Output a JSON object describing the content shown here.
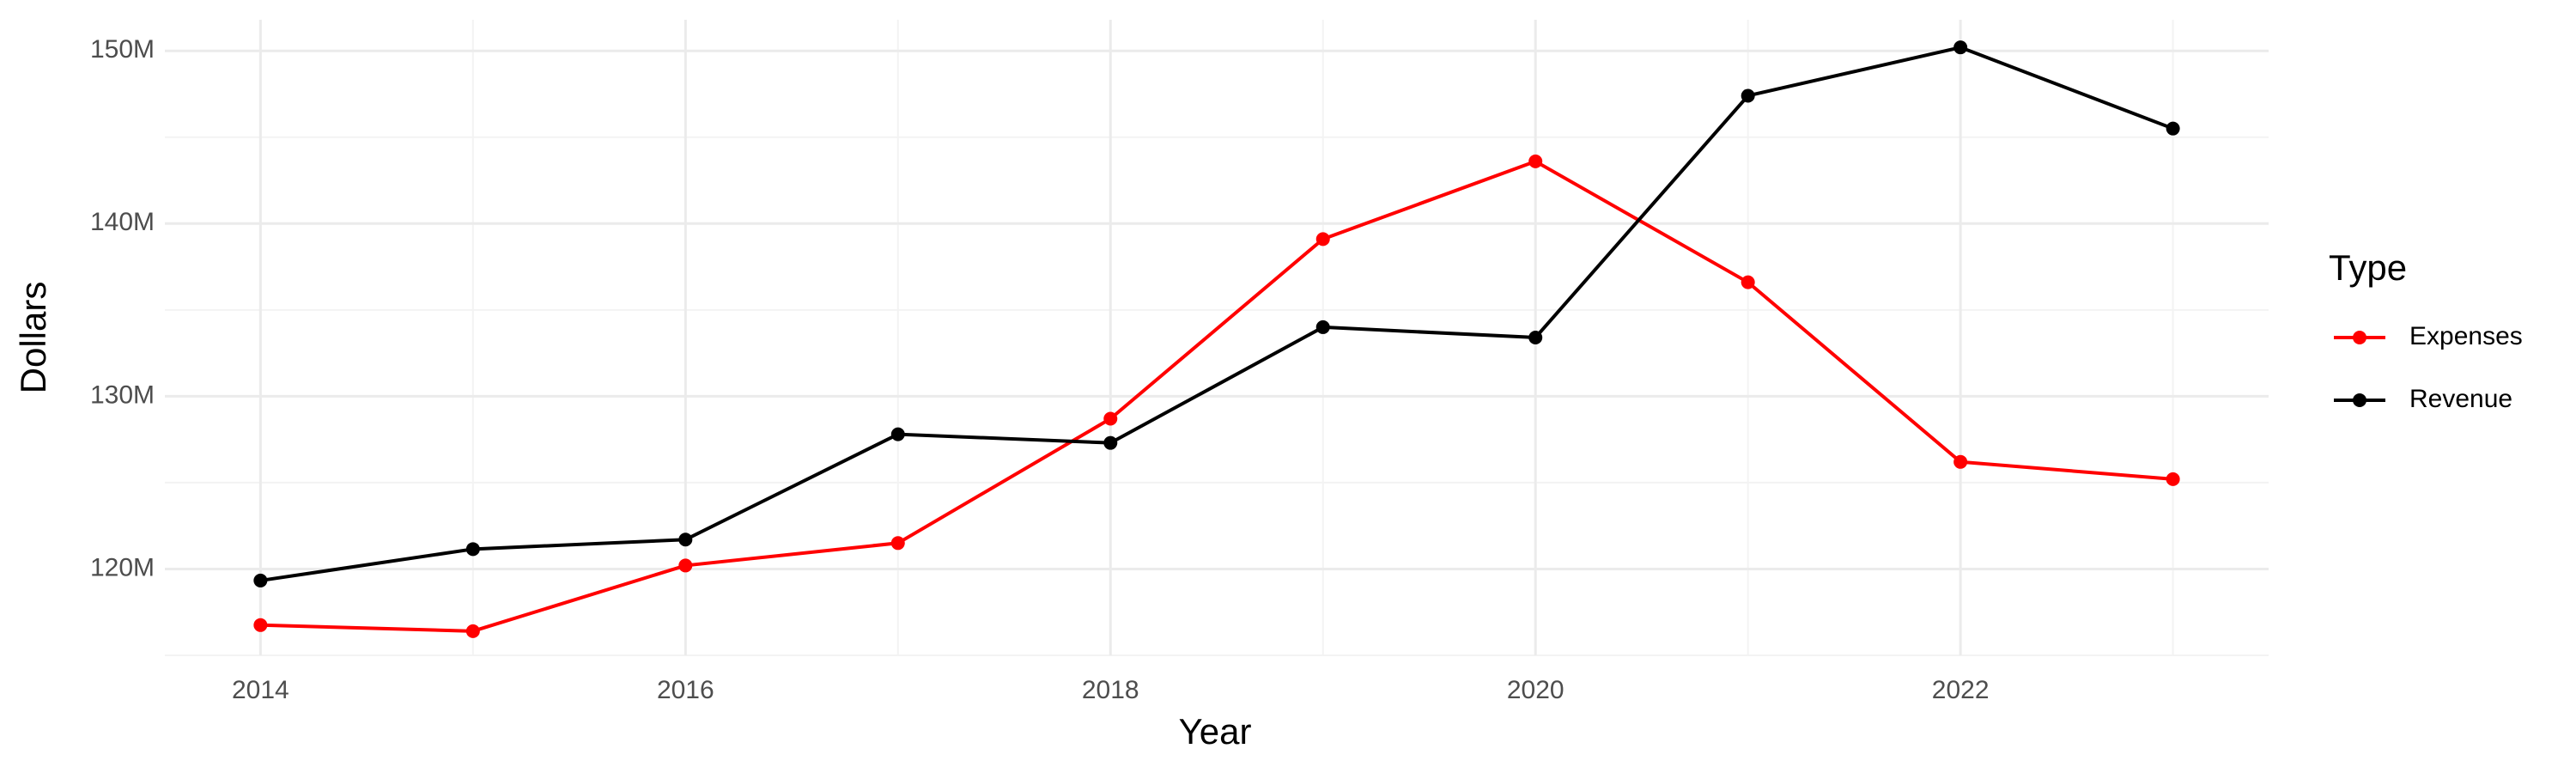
{
  "chart_data": {
    "type": "line",
    "x_label": "Year",
    "y_label": "Dollars",
    "x": [
      2014,
      2015,
      2016,
      2017,
      2018,
      2019,
      2020,
      2021,
      2022,
      2023
    ],
    "series": [
      {
        "name": "Expenses",
        "color": "#ff0000",
        "values": [
          116750000,
          116400000,
          120200000,
          121500000,
          128700000,
          139100000,
          143600000,
          136600000,
          126200000,
          125200000
        ]
      },
      {
        "name": "Revenue",
        "color": "#000000",
        "values": [
          119330000,
          121150000,
          121700000,
          127800000,
          127300000,
          134000000,
          133400000,
          147400000,
          150200000,
          145500000
        ]
      }
    ],
    "xlim": [
      2013.55,
      2023.45
    ],
    "xticks": [
      2014,
      2016,
      2018,
      2020,
      2022
    ],
    "ylim": [
      115000000,
      151800000
    ],
    "yticks": [
      {
        "value": 120000000,
        "label": "120M"
      },
      {
        "value": 130000000,
        "label": "130M"
      },
      {
        "value": 140000000,
        "label": "140M"
      },
      {
        "value": 150000000,
        "label": "150M"
      }
    ],
    "grid": true,
    "legend_title": "Type",
    "legend_position": "right"
  }
}
